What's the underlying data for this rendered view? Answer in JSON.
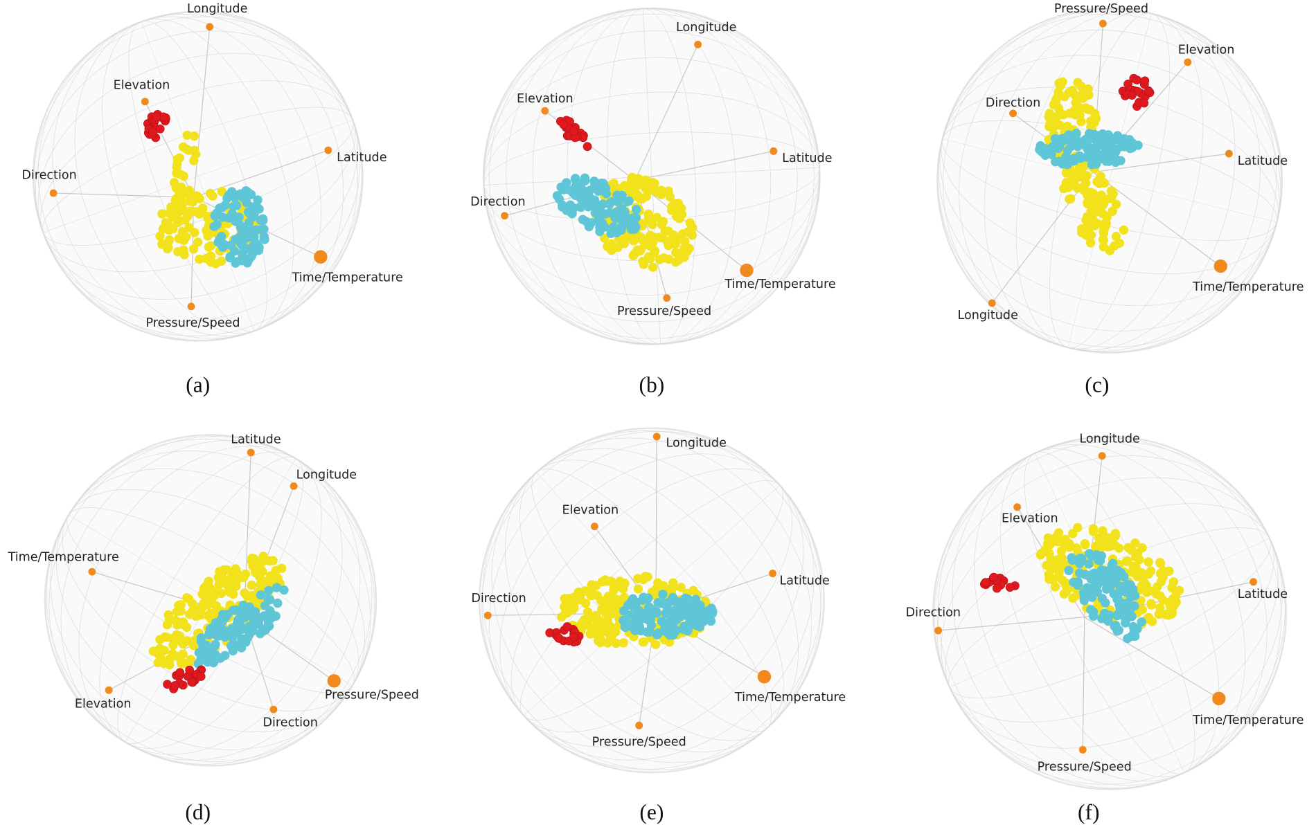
{
  "colors": {
    "yellow": "#f2e21c",
    "cyan": "#5ec6d6",
    "red": "#e0191f",
    "axis_anchor": "#f08a1c",
    "grid": "#d8d8d8"
  },
  "chart_data": [
    {
      "type": "scatter",
      "caption": "(a)",
      "axes": [
        "Longitude",
        "Elevation",
        "Latitude",
        "Direction",
        "Time/Temperature",
        "Pressure/Speed"
      ]
    },
    {
      "type": "scatter",
      "caption": "(b)",
      "axes": [
        "Longitude",
        "Elevation",
        "Latitude",
        "Direction",
        "Time/Temperature",
        "Pressure/Speed"
      ]
    },
    {
      "type": "scatter",
      "caption": "(c)",
      "axes": [
        "Pressure/Speed",
        "Elevation",
        "Direction",
        "Latitude",
        "Time/Temperature",
        "Longitude"
      ]
    },
    {
      "type": "scatter",
      "caption": "(d)",
      "axes": [
        "Latitude",
        "Longitude",
        "Time/Temperature",
        "Elevation",
        "Direction",
        "Pressure/Speed"
      ]
    },
    {
      "type": "scatter",
      "caption": "(e)",
      "axes": [
        "Longitude",
        "Elevation",
        "Latitude",
        "Direction",
        "Time/Temperature",
        "Pressure/Speed"
      ]
    },
    {
      "type": "scatter",
      "caption": "(f)",
      "axes": [
        "Longitude",
        "Elevation",
        "Latitude",
        "Direction",
        "Time/Temperature",
        "Pressure/Speed"
      ]
    }
  ]
}
